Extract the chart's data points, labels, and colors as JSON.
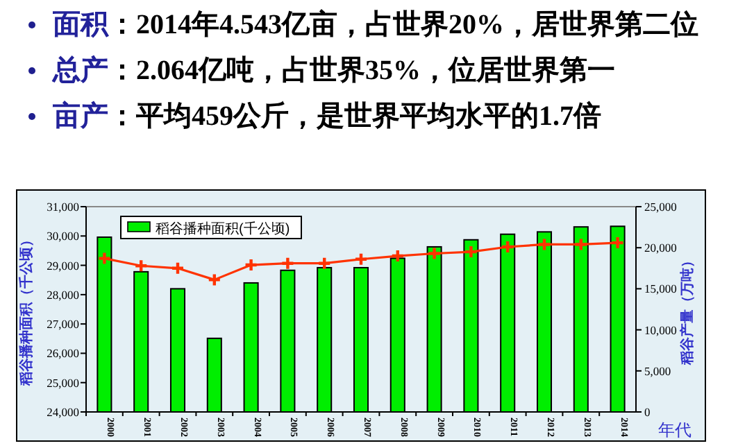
{
  "chart_data": {
    "type": "bar",
    "annotations": [
      "面积：2014年4.543亿亩，占世界20%，居世界第二位",
      "总产：2.064亿吨，占世界35%，位居世界第一",
      "亩产：平均459公斤，是世界平均水平的1.7倍"
    ],
    "categories": [
      "2000",
      "2001",
      "2002",
      "2003",
      "2004",
      "2005",
      "2006",
      "2007",
      "2008",
      "2009",
      "2010",
      "2011",
      "2012",
      "2013",
      "2014"
    ],
    "series": [
      {
        "name": "稻谷播种面积(千公顷)",
        "color": "#00ee00",
        "values": [
          29960,
          28780,
          28200,
          26510,
          28400,
          28830,
          28920,
          28920,
          29240,
          29630,
          29870,
          30060,
          30140,
          30310,
          30330
        ]
      },
      {
        "type": "line",
        "axis": "y2",
        "color": "#ff3300",
        "values": [
          18700,
          17800,
          17500,
          16100,
          17900,
          18100,
          18100,
          18600,
          19000,
          19300,
          19500,
          20100,
          20400,
          20400,
          20600
        ]
      }
    ],
    "ylabel": "稻谷播种面积（千公顷）",
    "y2label": "稻谷产量（万吨）",
    "xlabel": "年代",
    "ylim": [
      24000,
      31000
    ],
    "yticks": [
      {
        "value": 24000,
        "label": "24,000"
      },
      {
        "value": 25000,
        "label": "25,000"
      },
      {
        "value": 26000,
        "label": "26,000"
      },
      {
        "value": 27000,
        "label": "27,000"
      },
      {
        "value": 28000,
        "label": "28,000"
      },
      {
        "value": 29000,
        "label": "29,000"
      },
      {
        "value": 30000,
        "label": "30,000"
      },
      {
        "value": 31000,
        "label": "31,000"
      }
    ],
    "y2lim": [
      0,
      25000
    ],
    "y2ticks": [
      0,
      {
        "value": 5000,
        "label": "5,000"
      },
      {
        "value": 10000,
        "label": "10,000"
      },
      {
        "value": 15000,
        "label": "15,000"
      },
      {
        "value": 20000,
        "label": "20,000"
      },
      {
        "value": 25000,
        "label": "25,000"
      }
    ],
    "legend": "top left",
    "marker": "cross",
    "grid": false
  }
}
